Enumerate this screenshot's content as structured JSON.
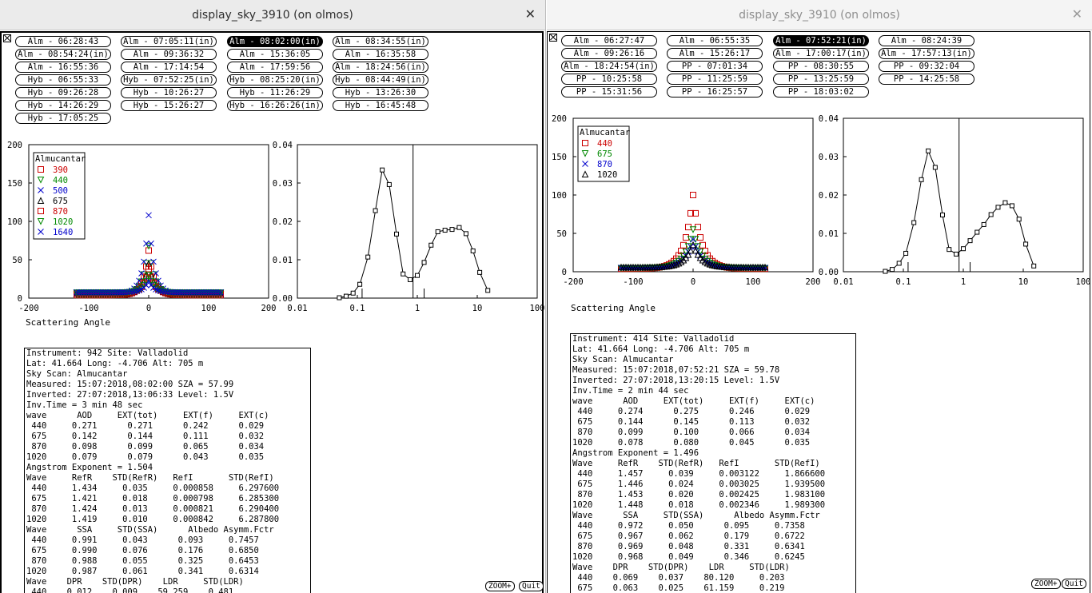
{
  "windows": [
    {
      "title": "display_sky_3910 (on olmos)",
      "close_glyph": "✕",
      "scan_buttons": [
        {
          "label": "Alm - 06:28:43",
          "selected": false
        },
        {
          "label": "Alm - 07:05:11(in)",
          "selected": false
        },
        {
          "label": "Alm - 08:02:00(in)",
          "selected": true
        },
        {
          "label": "Alm - 08:34:55(in)",
          "selected": false
        },
        {
          "label": "Alm - 08:54:24(in)",
          "selected": false
        },
        {
          "label": "Alm - 09:36:32",
          "selected": false
        },
        {
          "label": "Alm - 15:36:05",
          "selected": false
        },
        {
          "label": "Alm - 16:35:58",
          "selected": false
        },
        {
          "label": "Alm - 16:55:36",
          "selected": false
        },
        {
          "label": "Alm - 17:14:54",
          "selected": false
        },
        {
          "label": "Alm - 17:59:56",
          "selected": false
        },
        {
          "label": "Alm - 18:24:56(in)",
          "selected": false
        },
        {
          "label": "Hyb - 06:55:33",
          "selected": false
        },
        {
          "label": "Hyb - 07:52:25(in)",
          "selected": false
        },
        {
          "label": "Hyb - 08:25:20(in)",
          "selected": false
        },
        {
          "label": "Hyb - 08:44:49(in)",
          "selected": false
        },
        {
          "label": "Hyb - 09:26:28",
          "selected": false
        },
        {
          "label": "Hyb - 10:26:27",
          "selected": false
        },
        {
          "label": "Hyb - 11:26:29",
          "selected": false
        },
        {
          "label": "Hyb - 13:26:30",
          "selected": false
        },
        {
          "label": "Hyb - 14:26:29",
          "selected": false
        },
        {
          "label": "Hyb - 15:26:27",
          "selected": false
        },
        {
          "label": "Hyb - 16:26:26(in)",
          "selected": false
        },
        {
          "label": "Hyb - 16:45:48",
          "selected": false
        },
        {
          "label": "Hyb - 17:05:25",
          "selected": false
        }
      ],
      "xlabel": "Scattering Angle",
      "legend_title": "Almucantar",
      "legend": [
        {
          "label": "390",
          "color": "#cc0000",
          "marker": "square"
        },
        {
          "label": "440",
          "color": "#008800",
          "marker": "triangle-down"
        },
        {
          "label": "500",
          "color": "#0000cc",
          "marker": "cross"
        },
        {
          "label": "675",
          "color": "#000000",
          "marker": "triangle-up"
        },
        {
          "label": "870",
          "color": "#cc0000",
          "marker": "square"
        },
        {
          "label": "1020",
          "color": "#008800",
          "marker": "triangle-down"
        },
        {
          "label": "1640",
          "color": "#0000cc",
          "marker": "cross"
        }
      ],
      "info_lines": [
        "Instrument: 942 Site: Valladolid",
        "Lat: 41.664 Long: -4.706 Alt: 705 m",
        "Sky Scan: Almucantar",
        "Measured: 15:07:2018,08:02:00 SZA = 57.99",
        "Inverted: 27:07:2018,13:06:33 Level: 1.5V",
        "Inv.Time = 3 min 48 sec",
        "wave      AOD     EXT(tot)     EXT(f)     EXT(c)",
        " 440     0.271      0.271      0.242      0.029",
        " 675     0.142      0.144      0.111      0.032",
        " 870     0.098      0.099      0.065      0.034",
        "1020     0.079      0.079      0.043      0.035",
        "Angstrom Exponent = 1.504",
        "Wave     RefR    STD(RefR)   RefI       STD(RefI)",
        " 440     1.434     0.035     0.000858     6.297600",
        " 675     1.421     0.018     0.000798     6.285300",
        " 870     1.424     0.013     0.000821     6.290400",
        "1020     1.419     0.010     0.000842     6.287800",
        "Wave      SSA     STD(SSA)      Albedo Asymm.Fctr",
        " 440     0.991     0.043      0.093     0.7457",
        " 675     0.990     0.076      0.176     0.6850",
        " 870     0.988     0.055      0.325     0.6453",
        "1020     0.987     0.061      0.341     0.6314",
        "Wave    DPR    STD(DPR)    LDR     STD(LDR)",
        " 440    0.012    0.009    59.259    0.481"
      ],
      "zoom_label": "ZOOM+",
      "quit_label": "Quit"
    },
    {
      "title": "display_sky_3910 (on olmos)",
      "close_glyph": "✕",
      "scan_buttons": [
        {
          "label": "Alm - 06:27:47",
          "selected": false
        },
        {
          "label": "Alm - 06:55:35",
          "selected": false
        },
        {
          "label": "Alm - 07:52:21(in)",
          "selected": true
        },
        {
          "label": "Alm - 08:24:39",
          "selected": false
        },
        {
          "label": "Alm - 09:26:16",
          "selected": false
        },
        {
          "label": "Alm - 15:26:17",
          "selected": false
        },
        {
          "label": "Alm - 17:00:17(in)",
          "selected": false
        },
        {
          "label": "Alm - 17:57:13(in)",
          "selected": false
        },
        {
          "label": "Alm - 18:24:54(in)",
          "selected": false
        },
        {
          "label": "PP - 07:01:34",
          "selected": false
        },
        {
          "label": "PP - 08:30:55",
          "selected": false
        },
        {
          "label": "PP - 09:32:04",
          "selected": false
        },
        {
          "label": "PP - 10:25:58",
          "selected": false
        },
        {
          "label": "PP - 11:25:59",
          "selected": false
        },
        {
          "label": "PP - 13:25:59",
          "selected": false
        },
        {
          "label": "PP - 14:25:58",
          "selected": false
        },
        {
          "label": "PP - 15:31:56",
          "selected": false
        },
        {
          "label": "PP - 16:25:57",
          "selected": false
        },
        {
          "label": "PP - 18:03:02",
          "selected": false
        }
      ],
      "xlabel": "Scattering Angle",
      "legend_title": "Almucantar",
      "legend": [
        {
          "label": "440",
          "color": "#cc0000",
          "marker": "square"
        },
        {
          "label": "675",
          "color": "#008800",
          "marker": "triangle-down"
        },
        {
          "label": "870",
          "color": "#0000cc",
          "marker": "cross"
        },
        {
          "label": "1020",
          "color": "#000000",
          "marker": "triangle-up"
        }
      ],
      "info_lines": [
        "Instrument: 414 Site: Valladolid",
        "Lat: 41.664 Long: -4.706 Alt: 705 m",
        "Sky Scan: Almucantar",
        "Measured: 15:07:2018,07:52:21 SZA = 59.78",
        "Inverted: 27:07:2018,13:20:15 Level: 1.5V",
        "Inv.Time = 2 min 44 sec",
        "wave      AOD     EXT(tot)     EXT(f)     EXT(c)",
        " 440     0.274      0.275      0.246      0.029",
        " 675     0.144      0.145      0.113      0.032",
        " 870     0.099      0.100      0.066      0.034",
        "1020     0.078      0.080      0.045      0.035",
        "Angstrom Exponent = 1.496",
        "Wave     RefR    STD(RefR)   RefI       STD(RefI)",
        " 440     1.457     0.039     0.003122     1.866600",
        " 675     1.446     0.024     0.003025     1.939500",
        " 870     1.453     0.020     0.002425     1.983100",
        "1020     1.448     0.018     0.002346     1.989300",
        "Wave      SSA     STD(SSA)      Albedo Asymm.Fctr",
        " 440     0.972     0.050      0.095     0.7358",
        " 675     0.967     0.062      0.179     0.6722",
        " 870     0.969     0.048      0.331     0.6341",
        "1020     0.968     0.049      0.346     0.6245",
        "Wave    DPR    STD(DPR)    LDR     STD(LDR)",
        " 440    0.069    0.037    80.120     0.203",
        " 675    0.063    0.025    61.159     0.219"
      ],
      "zoom_label": "ZOOM+",
      "quit_label": "Quit"
    }
  ],
  "chart_data": [
    {
      "type": "scatter",
      "window": 1,
      "xlabel": "Scattering Angle",
      "xlim": [
        -200,
        200
      ],
      "ylim": [
        0,
        200
      ],
      "xticks": [
        -200,
        -100,
        0,
        100,
        200
      ],
      "yticks": [
        0,
        50,
        100,
        150,
        200
      ],
      "legend_title": "Almucantar",
      "legend_position": "top-left",
      "series": [
        {
          "name": "390",
          "color": "#cc0000",
          "marker": "square",
          "peak": 62
        },
        {
          "name": "440",
          "color": "#008800",
          "marker": "triangle-down",
          "peak": 68
        },
        {
          "name": "500",
          "color": "#0000cc",
          "marker": "cross",
          "peak": 108
        },
        {
          "name": "675",
          "color": "#000000",
          "marker": "triangle-up",
          "peak": 45
        },
        {
          "name": "870",
          "color": "#cc0000",
          "marker": "square",
          "peak": 38
        },
        {
          "name": "1020",
          "color": "#008800",
          "marker": "triangle-down",
          "peak": 30
        },
        {
          "name": "1640",
          "color": "#0000cc",
          "marker": "cross",
          "peak": 22
        }
      ]
    },
    {
      "type": "line",
      "window": 1,
      "xscale": "log",
      "xlim": [
        0.01,
        100
      ],
      "ylim": [
        0,
        0.04
      ],
      "xticks": [
        "0.01",
        "0.1",
        "1",
        "10",
        "100"
      ],
      "yticks": [
        "0.00",
        "0.01",
        "0.02",
        "0.03",
        "0.04"
      ],
      "vline": 0.85,
      "x": [
        0.05,
        0.065,
        0.085,
        0.11,
        0.15,
        0.2,
        0.26,
        0.34,
        0.45,
        0.58,
        0.76,
        1.0,
        1.3,
        1.7,
        2.2,
        2.9,
        3.8,
        5.0,
        6.5,
        8.5,
        11,
        15
      ],
      "y": [
        0.0001,
        0.0005,
        0.0013,
        0.0036,
        0.0107,
        0.0228,
        0.0334,
        0.0296,
        0.0167,
        0.0063,
        0.0048,
        0.0059,
        0.0093,
        0.0138,
        0.0173,
        0.0177,
        0.0179,
        0.0184,
        0.0168,
        0.0123,
        0.0067,
        0.002
      ]
    },
    {
      "type": "scatter",
      "window": 2,
      "xlabel": "Scattering Angle",
      "xlim": [
        -200,
        200
      ],
      "ylim": [
        0,
        200
      ],
      "xticks": [
        -200,
        -100,
        0,
        100,
        200
      ],
      "yticks": [
        0,
        50,
        100,
        150,
        200
      ],
      "legend_title": "Almucantar",
      "legend_position": "top-left",
      "series": [
        {
          "name": "440",
          "color": "#cc0000",
          "marker": "square",
          "peak": 100
        },
        {
          "name": "675",
          "color": "#008800",
          "marker": "triangle-down",
          "peak": 55
        },
        {
          "name": "870",
          "color": "#0000cc",
          "marker": "cross",
          "peak": 42
        },
        {
          "name": "1020",
          "color": "#000000",
          "marker": "triangle-up",
          "peak": 35
        }
      ]
    },
    {
      "type": "line",
      "window": 2,
      "xscale": "log",
      "xlim": [
        0.01,
        100
      ],
      "ylim": [
        0,
        0.04
      ],
      "xticks": [
        "0.01",
        "0.1",
        "1",
        "10",
        "100"
      ],
      "yticks": [
        "0.00",
        "0.01",
        "0.02",
        "0.03",
        "0.04"
      ],
      "vline": 0.85,
      "x": [
        0.05,
        0.065,
        0.085,
        0.11,
        0.15,
        0.2,
        0.26,
        0.34,
        0.45,
        0.58,
        0.76,
        1.0,
        1.3,
        1.7,
        2.2,
        2.9,
        3.8,
        5.0,
        6.5,
        8.5,
        11,
        15
      ],
      "y": [
        0.0001,
        0.0006,
        0.0022,
        0.0048,
        0.0128,
        0.024,
        0.0315,
        0.0272,
        0.0148,
        0.0058,
        0.0046,
        0.006,
        0.0081,
        0.0103,
        0.0123,
        0.0149,
        0.0168,
        0.018,
        0.0172,
        0.0137,
        0.0072,
        0.0015
      ]
    }
  ]
}
